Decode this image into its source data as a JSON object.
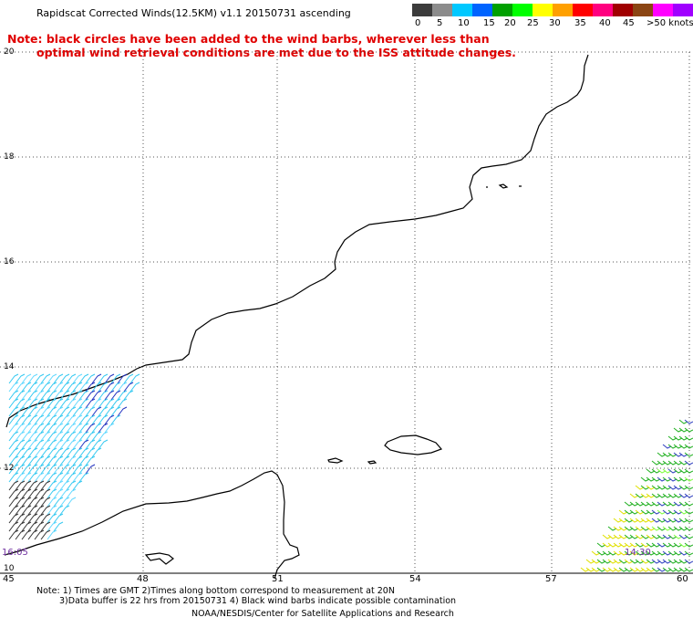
{
  "title": "Rapidscat Corrected Winds(12.5KM) v1.1 20150731 ascending",
  "note": {
    "line1": "Note: black circles have been added to the wind barbs, wherever less than",
    "line2": "optimal wind retrieval conditions are met due to the ISS attitude changes."
  },
  "legend": {
    "labels": [
      "0",
      "5",
      "10",
      "15",
      "20",
      "25",
      "30",
      "35",
      "40",
      "45",
      ">50 knots"
    ],
    "colors": [
      "#3c3c3c",
      "#8c8c8c",
      "#00c8ff",
      "#0064ff",
      "#00a000",
      "#00ff00",
      "#ffff00",
      "#ffa000",
      "#ff0000",
      "#ff0080",
      "#a00000",
      "#8b4513",
      "#ff00ff",
      "#a000ff",
      "#500090"
    ]
  },
  "axes": {
    "lat_labels": [
      "20",
      "18",
      "16",
      "14",
      "12",
      "10"
    ],
    "lon_labels": [
      "45",
      "48",
      "51",
      "54",
      "57",
      "60"
    ]
  },
  "pass_times": {
    "left": "16:05",
    "right": "14:30"
  },
  "footer": {
    "line1": "Note: 1) Times are GMT 2)Times along bottom correspond to measurement at 20N",
    "line2": "3)Data buffer is 22 hrs from 20150731 4) Black wind barbs indicate possible contamination",
    "line3": "NOAA/NESDIS/Center for Satellite Applications and Research"
  }
}
